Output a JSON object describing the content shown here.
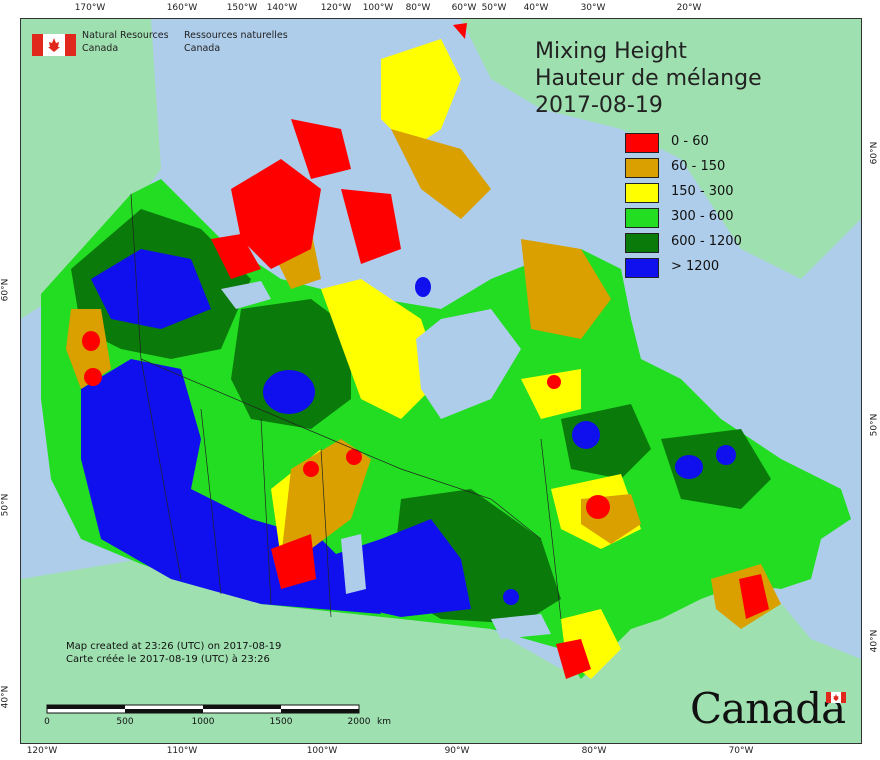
{
  "title": {
    "line1": "Mixing Height",
    "line2": "Hauteur de mélange",
    "date": "2017-08-19"
  },
  "legend": [
    {
      "label": "0 - 60",
      "color": "#ff0000"
    },
    {
      "label": "60 - 150",
      "color": "#d9a000"
    },
    {
      "label": "150 - 300",
      "color": "#ffff00"
    },
    {
      "label": "300 - 600",
      "color": "#22dd22"
    },
    {
      "label": "600 - 1200",
      "color": "#0a7a0a"
    },
    {
      "label": "> 1200",
      "color": "#1010ee"
    }
  ],
  "agency": {
    "en_line1": "Natural Resources",
    "en_line2": "Canada",
    "fr_line1": "Ressources naturelles",
    "fr_line2": "Canada"
  },
  "credit": {
    "en": "Map created at 23:26 (UTC) on 2017-08-19",
    "fr": "Carte créée le 2017-08-19 (UTC) à 23:26"
  },
  "scalebar": {
    "labels": [
      "0",
      "500",
      "1000",
      "1500",
      "2000"
    ],
    "unit": "km"
  },
  "wordmark": "Canada",
  "top_ticks": [
    "170°W",
    "160°W",
    "150°W",
    "140°W",
    "120°W",
    "100°W",
    "80°W",
    "60°W",
    "50°W",
    "40°W",
    "30°W",
    "20°W"
  ],
  "bottom_ticks": [
    "120°W",
    "110°W",
    "100°W",
    "90°W",
    "80°W",
    "70°W"
  ],
  "left_ticks": [
    "60°N",
    "50°N",
    "40°N"
  ],
  "right_ticks": [
    "60°N",
    "50°N",
    "40°N"
  ],
  "colors": {
    "water": "#aecdea",
    "land_outside": "#9fe0b0",
    "lakes": "#aecdea"
  }
}
